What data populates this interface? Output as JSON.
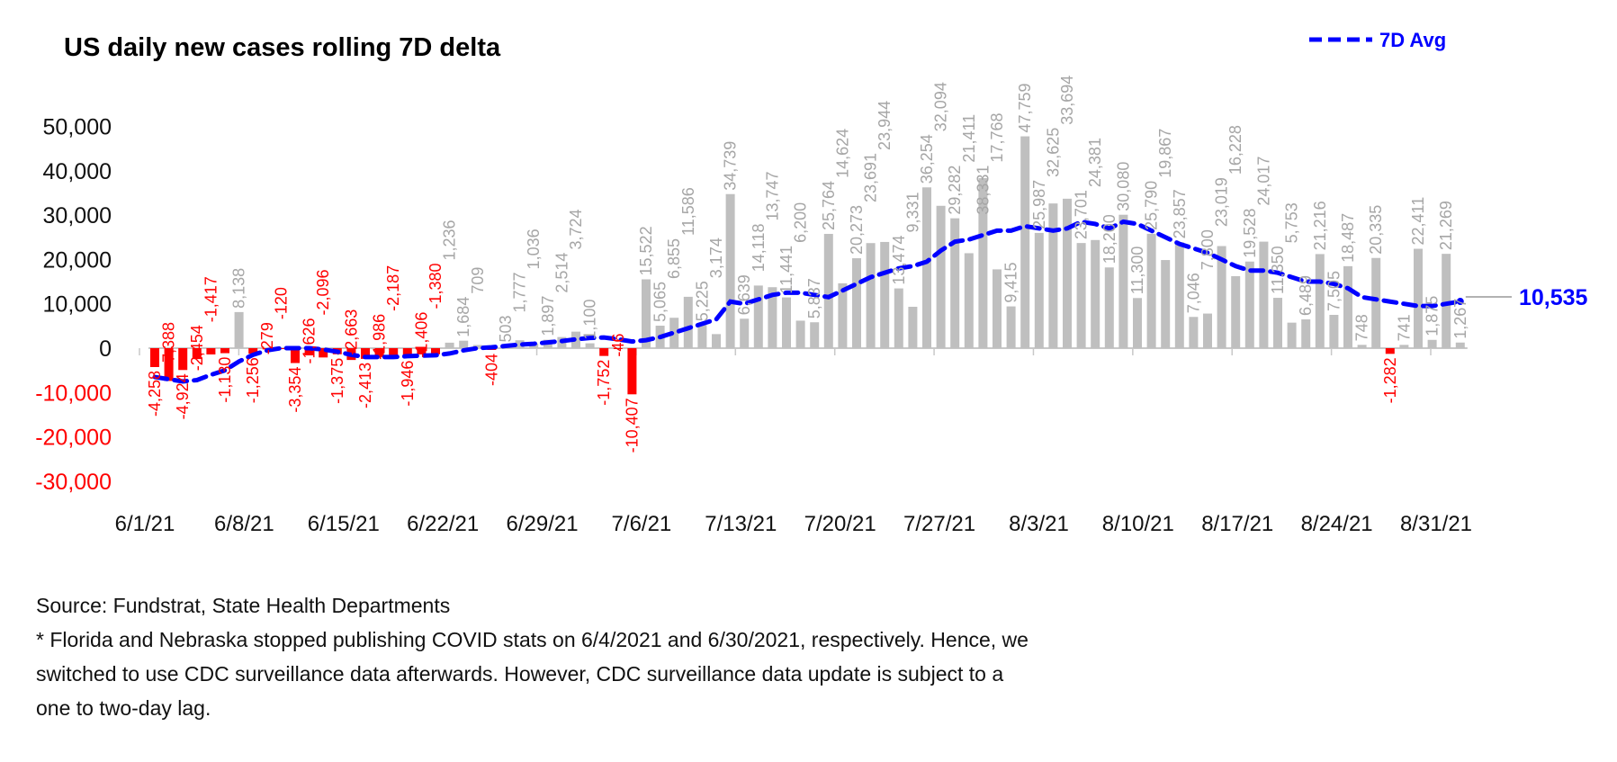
{
  "chart_data": {
    "type": "bar",
    "title": "US daily new cases rolling 7D delta",
    "xlabel": "",
    "ylabel": "",
    "ylim": [
      -30000,
      50000
    ],
    "yticks": [
      50000,
      40000,
      30000,
      20000,
      10000,
      0,
      -10000,
      -20000,
      -30000
    ],
    "ytick_labels": [
      "50,000",
      "40,000",
      "30,000",
      "20,000",
      "10,000",
      "0",
      "-10,000",
      "-20,000",
      "-30,000"
    ],
    "xtick_labels": [
      "6/1/21",
      "6/8/21",
      "6/15/21",
      "6/22/21",
      "6/29/21",
      "7/6/21",
      "7/13/21",
      "7/20/21",
      "7/27/21",
      "8/3/21",
      "8/10/21",
      "8/17/21",
      "8/24/21",
      "8/31/21"
    ],
    "grid": false,
    "legend": {
      "position": "top-right",
      "entries": [
        "7D Avg"
      ]
    },
    "colors": {
      "positive": "#BFBFBF",
      "negative": "#FF0000",
      "avg_line": "#0000FF"
    },
    "series": [
      {
        "name": "Daily delta",
        "type": "bar",
        "values": [
          -4258,
          -7388,
          -4924,
          -2454,
          -1417,
          -1130,
          8138,
          -1256,
          -279,
          -120,
          -3354,
          -1626,
          -2096,
          -1375,
          -2663,
          -2413,
          -1986,
          -2187,
          -1946,
          -1406,
          -1380,
          1236,
          1684,
          709,
          -404,
          503,
          1777,
          1036,
          1897,
          2514,
          3724,
          1100,
          -1752,
          -46,
          -10407,
          15522,
          5065,
          6855,
          11586,
          5225,
          3174,
          34739,
          6639,
          14118,
          13747,
          11441,
          6200,
          5837,
          25764,
          14624,
          20273,
          23691,
          23944,
          13474,
          9331,
          36254,
          32094,
          29282,
          21411,
          38331,
          17768,
          9415,
          47759,
          25987,
          32625,
          33694,
          23701,
          24381,
          18200,
          30080,
          11300,
          25790,
          19867,
          23857,
          7046,
          7800,
          23019,
          16228,
          19528,
          24017,
          11350,
          5753,
          6489,
          21216,
          7505,
          18487,
          748,
          20335,
          -1282,
          741,
          22411,
          1875,
          21269,
          1267
        ]
      },
      {
        "name": "7D Avg",
        "type": "line",
        "values": [
          -6500,
          -7000,
          -7500,
          -7200,
          -6000,
          -5000,
          -3000,
          -1500,
          -500,
          0,
          0,
          0,
          -300,
          -800,
          -1500,
          -2000,
          -2000,
          -2000,
          -1800,
          -1700,
          -1600,
          -1200,
          -500,
          0,
          200,
          500,
          800,
          1000,
          1300,
          1600,
          2000,
          2300,
          2400,
          2000,
          1500,
          1800,
          2500,
          3500,
          4500,
          5500,
          6500,
          10500,
          10000,
          11000,
          12000,
          12500,
          12500,
          12000,
          11500,
          13000,
          14500,
          16000,
          17000,
          18000,
          18500,
          19500,
          22000,
          24000,
          24500,
          25500,
          26500,
          26500,
          27500,
          27000,
          26500,
          27000,
          28500,
          28000,
          27000,
          28500,
          28000,
          26500,
          25000,
          23500,
          22500,
          21500,
          20000,
          18500,
          17500,
          17500,
          17000,
          16000,
          15000,
          15000,
          14500,
          13500,
          11500,
          11000,
          10500,
          10000,
          9500,
          9500,
          10000,
          10535
        ]
      }
    ],
    "last_value_label": "10,535"
  },
  "notes": {
    "source": "Source: Fundstrat, State Health Departments",
    "footnote_lines": [
      "* Florida and Nebraska  stopped publishing COVID stats on 6/4/2021 and 6/30/2021, respectively. Hence, we",
      "switched to use CDC surveillance data afterwards. However, CDC surveillance data update is subject to a",
      "one to two-day lag."
    ]
  }
}
